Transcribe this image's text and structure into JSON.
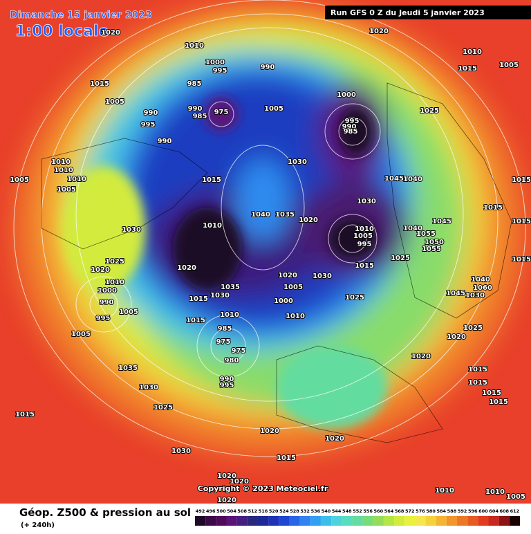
{
  "header": {
    "date": "Dimanche 15 janvier 2023",
    "time": "1:00 locale",
    "run": "Run GFS 0 Z du Jeudi 5 janvier 2023"
  },
  "footer": {
    "title": "Géop. Z500 & pression au sol",
    "lead": "(+ 240h)",
    "copyright": "Copyright © 2023 Meteociel.fr"
  },
  "colorbar": {
    "labels": [
      492,
      496,
      500,
      504,
      508,
      512,
      516,
      520,
      524,
      528,
      532,
      536,
      540,
      544,
      548,
      552,
      556,
      560,
      564,
      568,
      572,
      576,
      580,
      584,
      588,
      592,
      596,
      600,
      604,
      608,
      612
    ],
    "colors": [
      "#1e0a28",
      "#3c0a46",
      "#500a5a",
      "#5a1478",
      "#461e82",
      "#28287d",
      "#1e2896",
      "#1e32b4",
      "#1e46d2",
      "#2864e6",
      "#3282f0",
      "#32a0f0",
      "#3cbeeb",
      "#50d2dc",
      "#5adcbe",
      "#64dca0",
      "#78dc78",
      "#96dc5a",
      "#b4e646",
      "#d2eb3c",
      "#ebf03c",
      "#f5e650",
      "#f5d23c",
      "#f5b432",
      "#f0962d",
      "#eb7828",
      "#e65a23",
      "#e13c1e",
      "#c8281e",
      "#8c1414",
      "#1a0000"
    ]
  },
  "isobar_labels": [
    "1020",
    "1010",
    "1000",
    "995",
    "990",
    "1015",
    "985",
    "1005",
    "990",
    "975",
    "990",
    "985",
    "995",
    "1005",
    "1000",
    "1020",
    "1010",
    "1015",
    "1005",
    "1025",
    "995",
    "990",
    "985",
    "990",
    "1010",
    "1010",
    "1005",
    "1010",
    "1005",
    "1015",
    "1030",
    "1045",
    "1040",
    "1015",
    "1015",
    "1015",
    "1030",
    "1010",
    "1040",
    "1035",
    "1020",
    "1030",
    "1045",
    "1010",
    "1005",
    "995",
    "1040",
    "1055",
    "1050",
    "1055",
    "1025",
    "1020",
    "1020",
    "1025",
    "1015",
    "1015",
    "1020",
    "1030",
    "1010",
    "1000",
    "1035",
    "1030",
    "1015",
    "1005",
    "1025",
    "1040",
    "1060",
    "1045",
    "1030",
    "990",
    "1000",
    "1005",
    "995",
    "1015",
    "1010",
    "1010",
    "985",
    "1005",
    "975",
    "975",
    "980",
    "1025",
    "1020",
    "1020",
    "1035",
    "1015",
    "990",
    "995",
    "1030",
    "1015",
    "1015",
    "1025",
    "1015",
    "1015",
    "1020",
    "1020",
    "1030",
    "1015",
    "1020",
    "1020",
    "1010",
    "1010",
    "1005",
    "1020"
  ]
}
